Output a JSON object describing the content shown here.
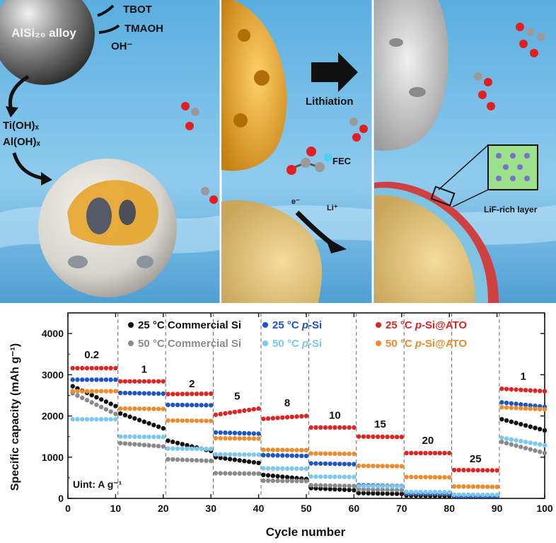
{
  "illustration": {
    "alloy_label": "AlSi₂₀ alloy",
    "reagents": [
      "TBOT",
      "TMAOH",
      "OH⁻"
    ],
    "hydroxides": [
      "Ti(OH)ₓ",
      "Al(OH)ₓ"
    ],
    "lithiation_label": "Lithiation",
    "fec_label": "FEC",
    "electron_label": "e⁻",
    "lithium_ion_label": "Li⁺",
    "lif_label": "LiF-rich layer",
    "colors": {
      "sky": "#4fa3d6",
      "sky_light": "#bfe3f7",
      "shell": "#e7a52a",
      "gray_particle": "#bdbdbd",
      "sand": "#e3c67f",
      "sei_red": "#d04040",
      "sei_blue": "#7fc3e2"
    }
  },
  "chart_data": {
    "type": "scatter",
    "xlabel": "Cycle number",
    "ylabel": "Specific capacity (mAh g⁻¹)",
    "xlim": [
      0,
      100
    ],
    "ylim": [
      0,
      4500
    ],
    "xticks": [
      0,
      10,
      20,
      30,
      40,
      50,
      60,
      70,
      80,
      90,
      100
    ],
    "yticks": [
      0,
      1000,
      2000,
      3000,
      4000
    ],
    "grid": false,
    "legend_position": "top",
    "rate_dividers": [
      10,
      20,
      30,
      40,
      50,
      60,
      70,
      80,
      90
    ],
    "rate_unit": "Uint: A g⁻¹",
    "rate_labels": [
      {
        "text": "0.2",
        "x": 5,
        "y": 3400
      },
      {
        "text": "1",
        "x": 16,
        "y": 3050
      },
      {
        "text": "2",
        "x": 26,
        "y": 2700
      },
      {
        "text": "5",
        "x": 35.5,
        "y": 2400
      },
      {
        "text": "8",
        "x": 46,
        "y": 2230
      },
      {
        "text": "10",
        "x": 56,
        "y": 1930
      },
      {
        "text": "15",
        "x": 65.5,
        "y": 1720
      },
      {
        "text": "20",
        "x": 75.5,
        "y": 1320
      },
      {
        "text": "25",
        "x": 85.5,
        "y": 880
      },
      {
        "text": "1",
        "x": 95.5,
        "y": 2880
      }
    ],
    "series": [
      {
        "name_parts": [
          "25 °C Commercial Si"
        ],
        "color": "#111111",
        "plateaus": [
          [
            2720,
            2240
          ],
          [
            2060,
            1700
          ],
          [
            1400,
            1150
          ],
          [
            1000,
            860
          ],
          [
            570,
            470
          ],
          [
            250,
            200
          ],
          [
            130,
            110
          ],
          [
            70,
            60
          ],
          [
            45,
            40
          ],
          [
            1920,
            1650
          ]
        ]
      },
      {
        "name_parts": [
          "50 °C Commercial Si"
        ],
        "color": "#8a8a8a",
        "plateaus": [
          [
            2550,
            2050
          ],
          [
            1340,
            1260
          ],
          [
            950,
            910
          ],
          [
            610,
            600
          ],
          [
            430,
            420
          ],
          [
            320,
            300
          ],
          [
            220,
            200
          ],
          [
            120,
            110
          ],
          [
            60,
            55
          ],
          [
            1370,
            1100
          ]
        ]
      },
      {
        "name_parts": [
          "25 °C ",
          "p",
          "-Si"
        ],
        "color": "#1d55c9",
        "plateaus": [
          [
            2880,
            2880
          ],
          [
            2560,
            2540
          ],
          [
            2270,
            2260
          ],
          [
            1600,
            1570
          ],
          [
            1050,
            1030
          ],
          [
            850,
            830
          ],
          [
            320,
            300
          ],
          [
            130,
            120
          ],
          [
            60,
            55
          ],
          [
            2330,
            2220
          ]
        ]
      },
      {
        "name_parts": [
          "50 °C ",
          "p",
          "-Si"
        ],
        "color": "#7cc7f0",
        "plateaus": [
          [
            1920,
            1920
          ],
          [
            1500,
            1490
          ],
          [
            1210,
            1200
          ],
          [
            1070,
            1060
          ],
          [
            730,
            720
          ],
          [
            530,
            520
          ],
          [
            300,
            290
          ],
          [
            160,
            150
          ],
          [
            90,
            85
          ],
          [
            1470,
            1290
          ]
        ]
      },
      {
        "name_parts": [
          "25 °C ",
          "p",
          "-Si@ATO"
        ],
        "color": "#e02424",
        "plateaus": [
          [
            3160,
            3160
          ],
          [
            2840,
            2840
          ],
          [
            2530,
            2540
          ],
          [
            2030,
            2180
          ],
          [
            1930,
            2000
          ],
          [
            1720,
            1720
          ],
          [
            1500,
            1490
          ],
          [
            1100,
            1100
          ],
          [
            690,
            680
          ],
          [
            2660,
            2600
          ]
        ]
      },
      {
        "name_parts": [
          "50 °C ",
          "p",
          "-Si@ATO"
        ],
        "color": "#f08a2a",
        "plateaus": [
          [
            2600,
            2600
          ],
          [
            2180,
            2170
          ],
          [
            1890,
            1880
          ],
          [
            1460,
            1450
          ],
          [
            1180,
            1170
          ],
          [
            1090,
            1080
          ],
          [
            790,
            780
          ],
          [
            520,
            510
          ],
          [
            290,
            280
          ],
          [
            2210,
            2160
          ]
        ]
      }
    ]
  }
}
